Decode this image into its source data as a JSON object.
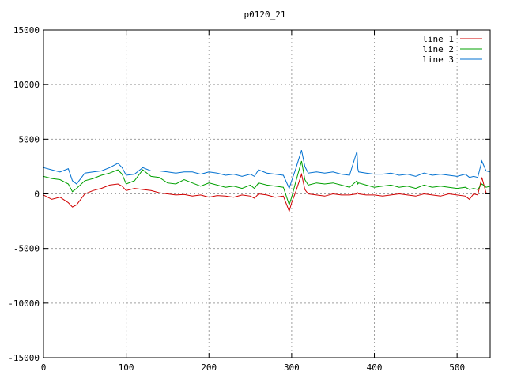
{
  "chart_data": {
    "type": "line",
    "title": "p0120_21",
    "xlabel": "",
    "ylabel": "",
    "xlim": [
      0,
      540
    ],
    "ylim": [
      -15000,
      15000
    ],
    "xticks": [
      0,
      100,
      200,
      300,
      400,
      500
    ],
    "yticks": [
      -15000,
      -10000,
      -5000,
      0,
      5000,
      10000,
      15000
    ],
    "xtick_labels": [
      "0",
      "100",
      "200",
      "300",
      "400",
      "500"
    ],
    "ytick_labels": [
      "-15000",
      "-10000",
      "-5000",
      "0",
      "5000",
      "10000",
      "15000"
    ],
    "grid": true,
    "legend_position": "top-right",
    "x": [
      0,
      10,
      20,
      30,
      35,
      40,
      50,
      60,
      70,
      80,
      90,
      95,
      100,
      110,
      120,
      130,
      140,
      150,
      160,
      170,
      180,
      190,
      200,
      210,
      220,
      230,
      240,
      250,
      255,
      260,
      270,
      280,
      290,
      297,
      300,
      305,
      312,
      316,
      320,
      330,
      340,
      350,
      360,
      370,
      379,
      380,
      381,
      390,
      400,
      410,
      420,
      430,
      440,
      450,
      460,
      470,
      480,
      490,
      500,
      510,
      515,
      520,
      525,
      530,
      535,
      540
    ],
    "series": [
      {
        "name": "line 1",
        "color": "#d00000",
        "values": [
          -100,
          -500,
          -300,
          -800,
          -1200,
          -1000,
          0,
          300,
          500,
          800,
          900,
          700,
          300,
          500,
          400,
          300,
          100,
          0,
          -100,
          -50,
          -200,
          -100,
          -300,
          -150,
          -200,
          -300,
          -100,
          -200,
          -400,
          0,
          -100,
          -300,
          -200,
          -1600,
          -800,
          200,
          1800,
          400,
          0,
          -100,
          -200,
          0,
          -100,
          -100,
          0,
          100,
          0,
          -100,
          -100,
          -200,
          -100,
          0,
          -100,
          -200,
          0,
          -100,
          -200,
          0,
          -100,
          -200,
          -500,
          0,
          -100,
          1500,
          100,
          0
        ]
      },
      {
        "name": "line 2",
        "color": "#00a000",
        "values": [
          1600,
          1400,
          1300,
          900,
          200,
          500,
          1200,
          1400,
          1700,
          1900,
          2200,
          1800,
          900,
          1200,
          2200,
          1600,
          1500,
          1000,
          900,
          1300,
          1000,
          700,
          1000,
          800,
          600,
          700,
          500,
          800,
          500,
          1000,
          800,
          700,
          600,
          -1000,
          -300,
          1100,
          3000,
          1300,
          800,
          1000,
          900,
          1000,
          800,
          600,
          1200,
          900,
          1000,
          800,
          600,
          700,
          800,
          600,
          700,
          500,
          800,
          600,
          700,
          600,
          500,
          600,
          400,
          500,
          400,
          900,
          600,
          700
        ]
      },
      {
        "name": "line 3",
        "color": "#0070d0",
        "values": [
          2400,
          2200,
          2000,
          2300,
          1200,
          900,
          1900,
          2000,
          2100,
          2400,
          2800,
          2400,
          1700,
          1800,
          2400,
          2100,
          2100,
          2000,
          1900,
          2000,
          2000,
          1800,
          2000,
          1900,
          1700,
          1800,
          1600,
          1800,
          1600,
          2200,
          1900,
          1800,
          1700,
          500,
          1200,
          2300,
          4000,
          2500,
          1900,
          2000,
          1900,
          2000,
          1800,
          1700,
          3900,
          2300,
          2000,
          1900,
          1800,
          1800,
          1900,
          1700,
          1800,
          1600,
          1900,
          1700,
          1800,
          1700,
          1600,
          1800,
          1500,
          1600,
          1500,
          3000,
          2100,
          2000
        ]
      }
    ]
  }
}
